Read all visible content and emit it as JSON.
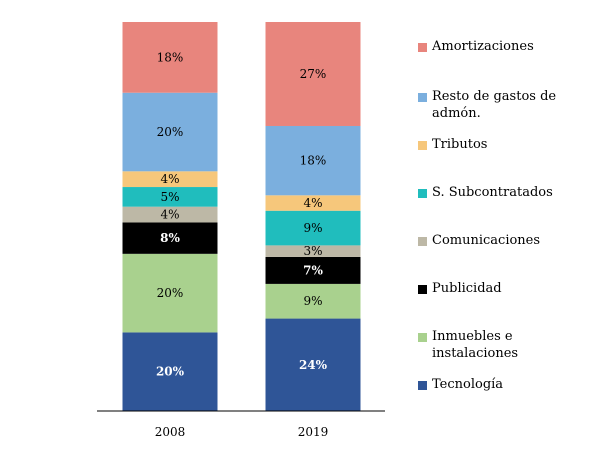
{
  "chart_data": {
    "type": "bar",
    "stacked": true,
    "percent_stacked": true,
    "categories": [
      "2008",
      "2019"
    ],
    "ylim": [
      0,
      100
    ],
    "grid": false,
    "legend_position": "right",
    "series": [
      {
        "name": "Tecnología",
        "values": [
          20,
          24
        ],
        "labels": [
          "20%",
          "24%"
        ],
        "color": "#2f5597",
        "label_color": "#ffffff",
        "label_bold": true
      },
      {
        "name": "Inmuebles e instalaciones",
        "values": [
          20,
          9
        ],
        "labels": [
          "20%",
          "9%"
        ],
        "color": "#a9d18e",
        "label_color": "#000000",
        "label_bold": false
      },
      {
        "name": "Publicidad",
        "values": [
          8,
          7
        ],
        "labels": [
          "8%",
          "7%"
        ],
        "color": "#000000",
        "label_color": "#ffffff",
        "label_bold": true
      },
      {
        "name": "Comunicaciones",
        "values": [
          4,
          3
        ],
        "labels": [
          "4%",
          "3%"
        ],
        "color": "#bdb8a6",
        "label_color": "#000000",
        "label_bold": false
      },
      {
        "name": "S. Subcontratados",
        "values": [
          5,
          9
        ],
        "labels": [
          "5%",
          "9%"
        ],
        "color": "#20bdbd",
        "label_color": "#000000",
        "label_bold": false
      },
      {
        "name": "Tributos",
        "values": [
          4,
          4
        ],
        "labels": [
          "4%",
          "4%"
        ],
        "color": "#f6c77b",
        "label_color": "#000000",
        "label_bold": false
      },
      {
        "name": "Resto de gastos de admón.",
        "values": [
          20,
          18
        ],
        "labels": [
          "20%",
          "18%"
        ],
        "color": "#7bafde",
        "label_color": "#000000",
        "label_bold": false
      },
      {
        "name": "Amortizaciones",
        "values": [
          18,
          27
        ],
        "labels": [
          "18%",
          "27%"
        ],
        "color": "#e8857d",
        "label_color": "#000000",
        "label_bold": false
      }
    ]
  }
}
